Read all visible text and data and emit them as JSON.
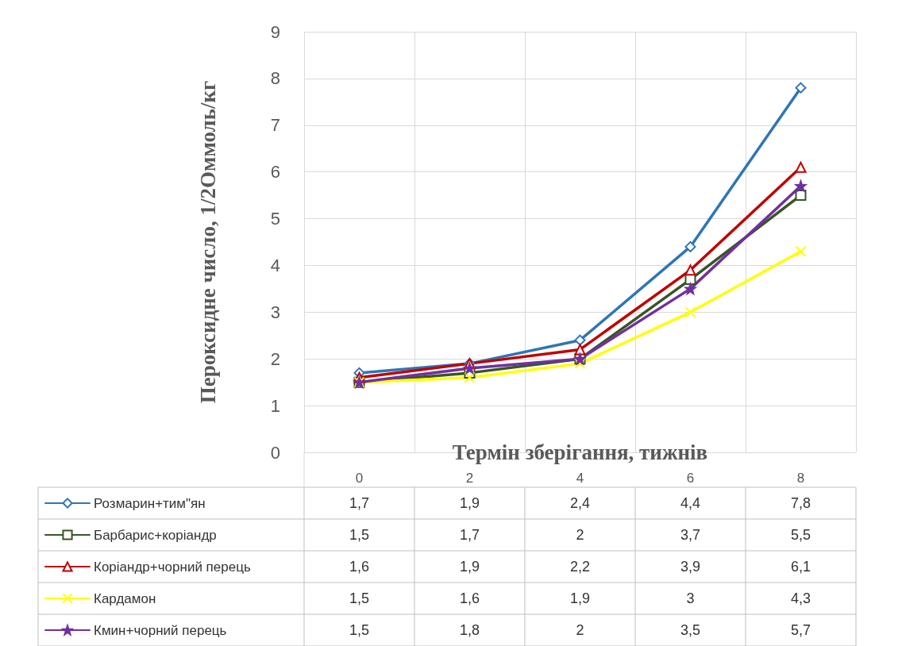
{
  "chart_data": {
    "type": "line",
    "xlabel": "Термін зберігання, тижнів",
    "ylabel": "Пероксидне число, 1/2Оммоль/кг",
    "categories": [
      "0",
      "2",
      "4",
      "6",
      "8"
    ],
    "ylim": [
      0,
      9
    ],
    "yticks": [
      0,
      1,
      2,
      3,
      4,
      5,
      6,
      7,
      8,
      9
    ],
    "grid": true,
    "legend": "bottom",
    "series": [
      {
        "name": "Розмарин+тим\"ян",
        "color": "#2e75b6",
        "marker": "diamond",
        "values": [
          1.7,
          1.9,
          2.4,
          4.4,
          7.8
        ],
        "value_labels": [
          "1,7",
          "1,9",
          "2,4",
          "4,4",
          "7,8"
        ]
      },
      {
        "name": "Барбарис+коріандр",
        "color": "#375623",
        "marker": "square",
        "values": [
          1.5,
          1.7,
          2,
          3.7,
          5.5
        ],
        "value_labels": [
          "1,5",
          "1,7",
          "2",
          "3,7",
          "5,5"
        ]
      },
      {
        "name": "Коріандр+чорний перець",
        "color": "#c00000",
        "marker": "triangle",
        "values": [
          1.6,
          1.9,
          2.2,
          3.9,
          6.1
        ],
        "value_labels": [
          "1,6",
          "1,9",
          "2,2",
          "3,9",
          "6,1"
        ]
      },
      {
        "name": "Кардамон",
        "color": "#ffff00",
        "marker": "cross",
        "values": [
          1.5,
          1.6,
          1.9,
          3,
          4.3
        ],
        "value_labels": [
          "1,5",
          "1,6",
          "1,9",
          "3",
          "4,3"
        ]
      },
      {
        "name": "Кмин+чорний перець",
        "color": "#7030a0",
        "marker": "star",
        "values": [
          1.5,
          1.8,
          2,
          3.5,
          5.7
        ],
        "value_labels": [
          "1,5",
          "1,8",
          "2",
          "3,5",
          "5,7"
        ]
      }
    ]
  }
}
